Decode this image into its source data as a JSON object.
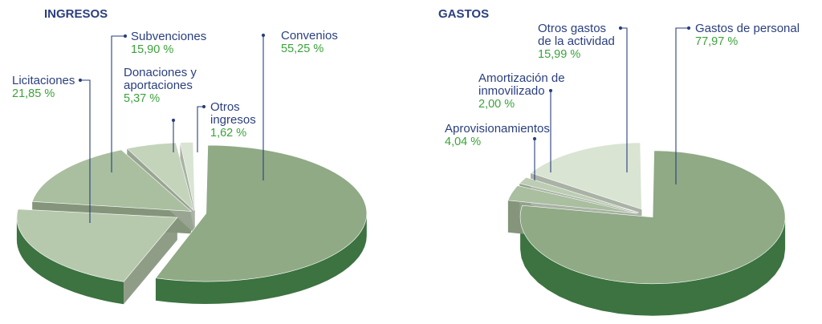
{
  "chart_data": [
    {
      "type": "pie",
      "title": "INGRESOS",
      "slices": [
        {
          "label": "Convenios",
          "value": 55.25,
          "value_text": "55,25 %",
          "color": "#8faa85"
        },
        {
          "label": "Licitaciones",
          "value": 21.85,
          "value_text": "21,85 %",
          "color": "#b7c9ad"
        },
        {
          "label": "Subvenciones",
          "value": 15.9,
          "value_text": "15,90 %",
          "color": "#a9bf9f"
        },
        {
          "label": "Donaciones y\naportaciones",
          "value": 5.37,
          "value_text": "5,37 %",
          "color": "#c4d4bb"
        },
        {
          "label": "Otros\ningresos",
          "value": 1.62,
          "value_text": "1,62 %",
          "color": "#d9e4d3"
        }
      ]
    },
    {
      "type": "pie",
      "title": "GASTOS",
      "slices": [
        {
          "label": "Gastos de personal",
          "value": 77.97,
          "value_text": "77,97 %",
          "color": "#8faa85"
        },
        {
          "label": "Aprovisionamientos",
          "value": 4.04,
          "value_text": "4,04 %",
          "color": "#a9bf9f"
        },
        {
          "label": "Amortización de\ninmovilizado",
          "value": 2.0,
          "value_text": "2,00 %",
          "color": "#bccdb3"
        },
        {
          "label": "Otros gastos\nde la actividad",
          "value": 15.99,
          "value_text": "15,99 %",
          "color": "#d9e4d3"
        }
      ]
    }
  ],
  "colors": {
    "title": "#2a3f7e",
    "label": "#2a3f7e",
    "percent": "#3aa33a",
    "side": "#3c7341"
  }
}
